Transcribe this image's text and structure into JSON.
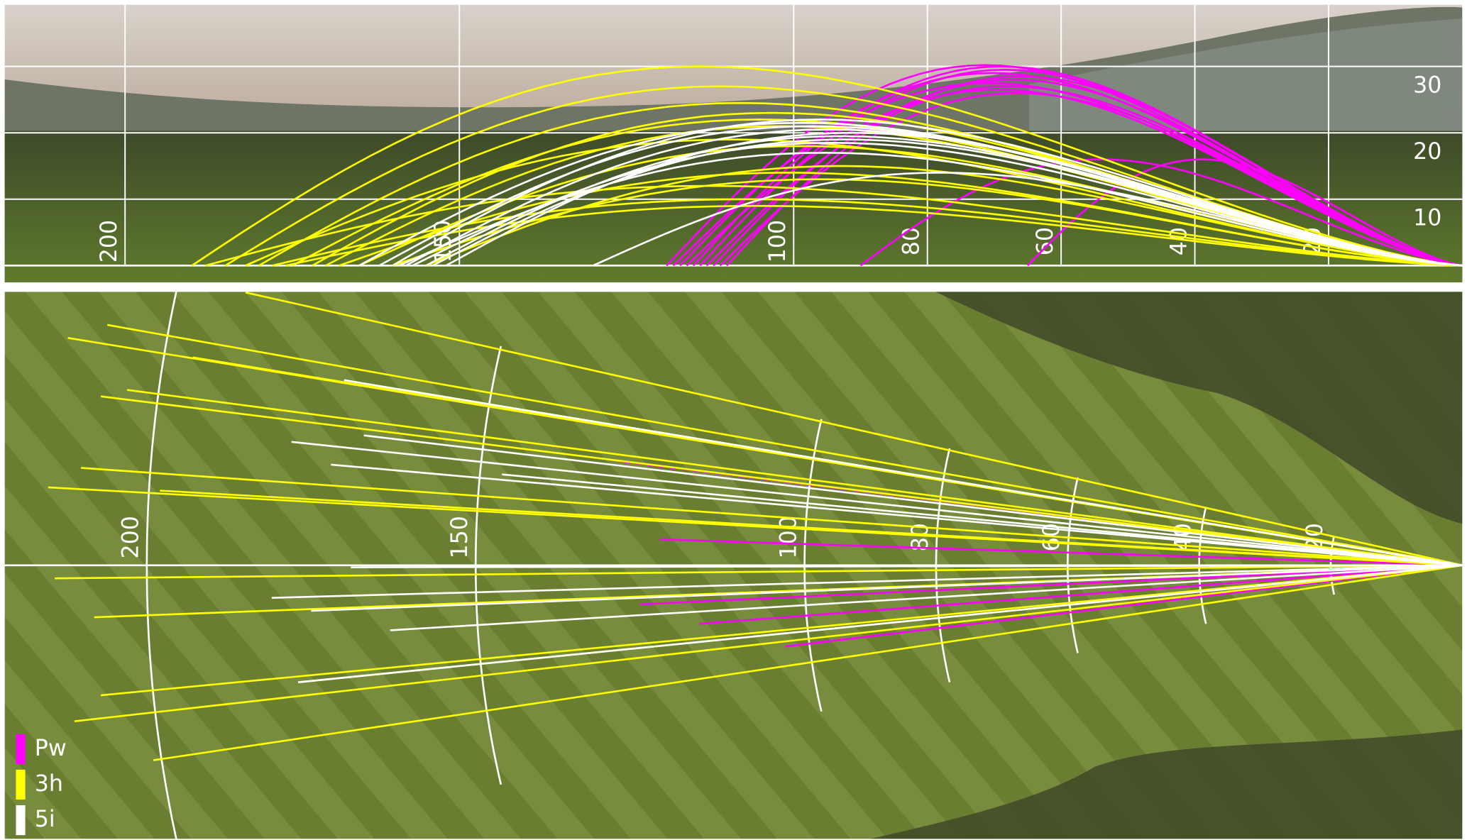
{
  "chart_data": [
    {
      "type": "trajectory",
      "xlim": [
        218,
        0
      ],
      "ylim": [
        0,
        39.3
      ],
      "xticks": [
        200,
        150,
        100,
        80,
        60,
        40,
        20
      ],
      "yticks": [
        10,
        20,
        30
      ],
      "grid": true,
      "series": [
        {
          "color": "#ff00ff",
          "carry": [
            115,
            117,
            112,
            118,
            114,
            116,
            110,
            113,
            119,
            111,
            65,
            90
          ],
          "apex": [
            30,
            29,
            28,
            27.5,
            29.5,
            26.5,
            28.5,
            27,
            30.2,
            26,
            16,
            16
          ]
        },
        {
          "color": "#ffff00",
          "carry": [
            190,
            185,
            180,
            175,
            170,
            182,
            160,
            178,
            165,
            172,
            188,
            155,
            168,
            176
          ],
          "apex": [
            30,
            27,
            24.5,
            22,
            21,
            19,
            13,
            10,
            18,
            23,
            12,
            15,
            14,
            9
          ]
        },
        {
          "color": "#ffffff",
          "carry": [
            162,
            158,
            155,
            160,
            152,
            157,
            165,
            154,
            130,
            159
          ],
          "apex": [
            21,
            20.5,
            19.5,
            22,
            20,
            18.5,
            21.5,
            19,
            14,
            17
          ]
        }
      ]
    },
    {
      "type": "dispersion",
      "xlim": [
        221.6,
        0
      ],
      "ylim": [
        -42.1,
        42.1
      ],
      "xticks": [
        200,
        150,
        100,
        80,
        60,
        40,
        20
      ],
      "legend": "bottom-left",
      "series": [
        {
          "name": "Pw",
          "color": "#ff00ff",
          "distance": [
            128,
            130,
            125,
            103,
            116,
            122
          ],
          "lateral": [
            16,
            7.5,
            -6,
            -12.5,
            -9,
            4
          ]
        },
        {
          "name": "3h",
          "color": "#ffff00",
          "distance": [
            185,
            206,
            212,
            207,
            203,
            193,
            210,
            215,
            198,
            214,
            208,
            207,
            211,
            199,
            177
          ],
          "lateral": [
            42,
            37,
            35,
            26,
            27,
            32,
            15,
            12,
            11.5,
            -2,
            -8,
            -20,
            -24,
            -30,
            -18
          ]
        },
        {
          "name": "5i",
          "color": "#ffffff",
          "distance": [
            170,
            167,
            178,
            172,
            169,
            181,
            175,
            163,
            177,
            146
          ],
          "lateral": [
            28.5,
            20,
            19,
            15.5,
            -0.3,
            -5,
            -7,
            -10,
            -18,
            14
          ]
        }
      ]
    }
  ]
}
